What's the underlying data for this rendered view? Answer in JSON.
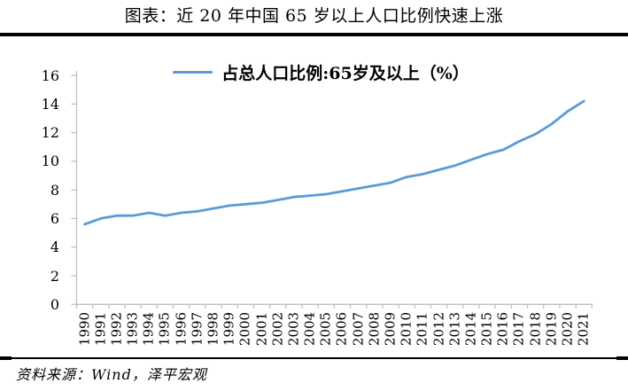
{
  "header": {
    "title": "图表：近 20 年中国 65 岁以上人口比例快速上涨"
  },
  "legend": {
    "label": "占总人口比例:65岁及以上（%）"
  },
  "footer": {
    "source": "资料来源：Wind，泽平宏观"
  },
  "colors": {
    "line": "#5B9BD5",
    "axis": "#BFBFBF",
    "text": "#000000",
    "rule": "#000000"
  },
  "chart_data": {
    "type": "line",
    "title": "图表：近 20 年中国 65 岁以上人口比例快速上涨",
    "x": [
      "1990",
      "1991",
      "1992",
      "1993",
      "1994",
      "1995",
      "1996",
      "1997",
      "1998",
      "1999",
      "2000",
      "2001",
      "2002",
      "2003",
      "2004",
      "2005",
      "2006",
      "2007",
      "2008",
      "2009",
      "2010",
      "2011",
      "2012",
      "2013",
      "2014",
      "2015",
      "2016",
      "2017",
      "2018",
      "2019",
      "2020",
      "2021"
    ],
    "series": [
      {
        "name": "占总人口比例:65岁及以上（%）",
        "color": "#5B9BD5",
        "values": [
          5.6,
          6.0,
          6.2,
          6.2,
          6.4,
          6.2,
          6.4,
          6.5,
          6.7,
          6.9,
          7.0,
          7.1,
          7.3,
          7.5,
          7.6,
          7.7,
          7.9,
          8.1,
          8.3,
          8.5,
          8.9,
          9.1,
          9.4,
          9.7,
          10.1,
          10.5,
          10.8,
          11.4,
          11.9,
          12.6,
          13.5,
          14.2
        ]
      }
    ],
    "ylim": [
      0,
      16
    ],
    "yticks": [
      0,
      2,
      4,
      6,
      8,
      10,
      12,
      14,
      16
    ],
    "xlabel": "",
    "ylabel": "",
    "grid": false,
    "legend_position": "top-center",
    "source": "资料来源：Wind，泽平宏观"
  }
}
